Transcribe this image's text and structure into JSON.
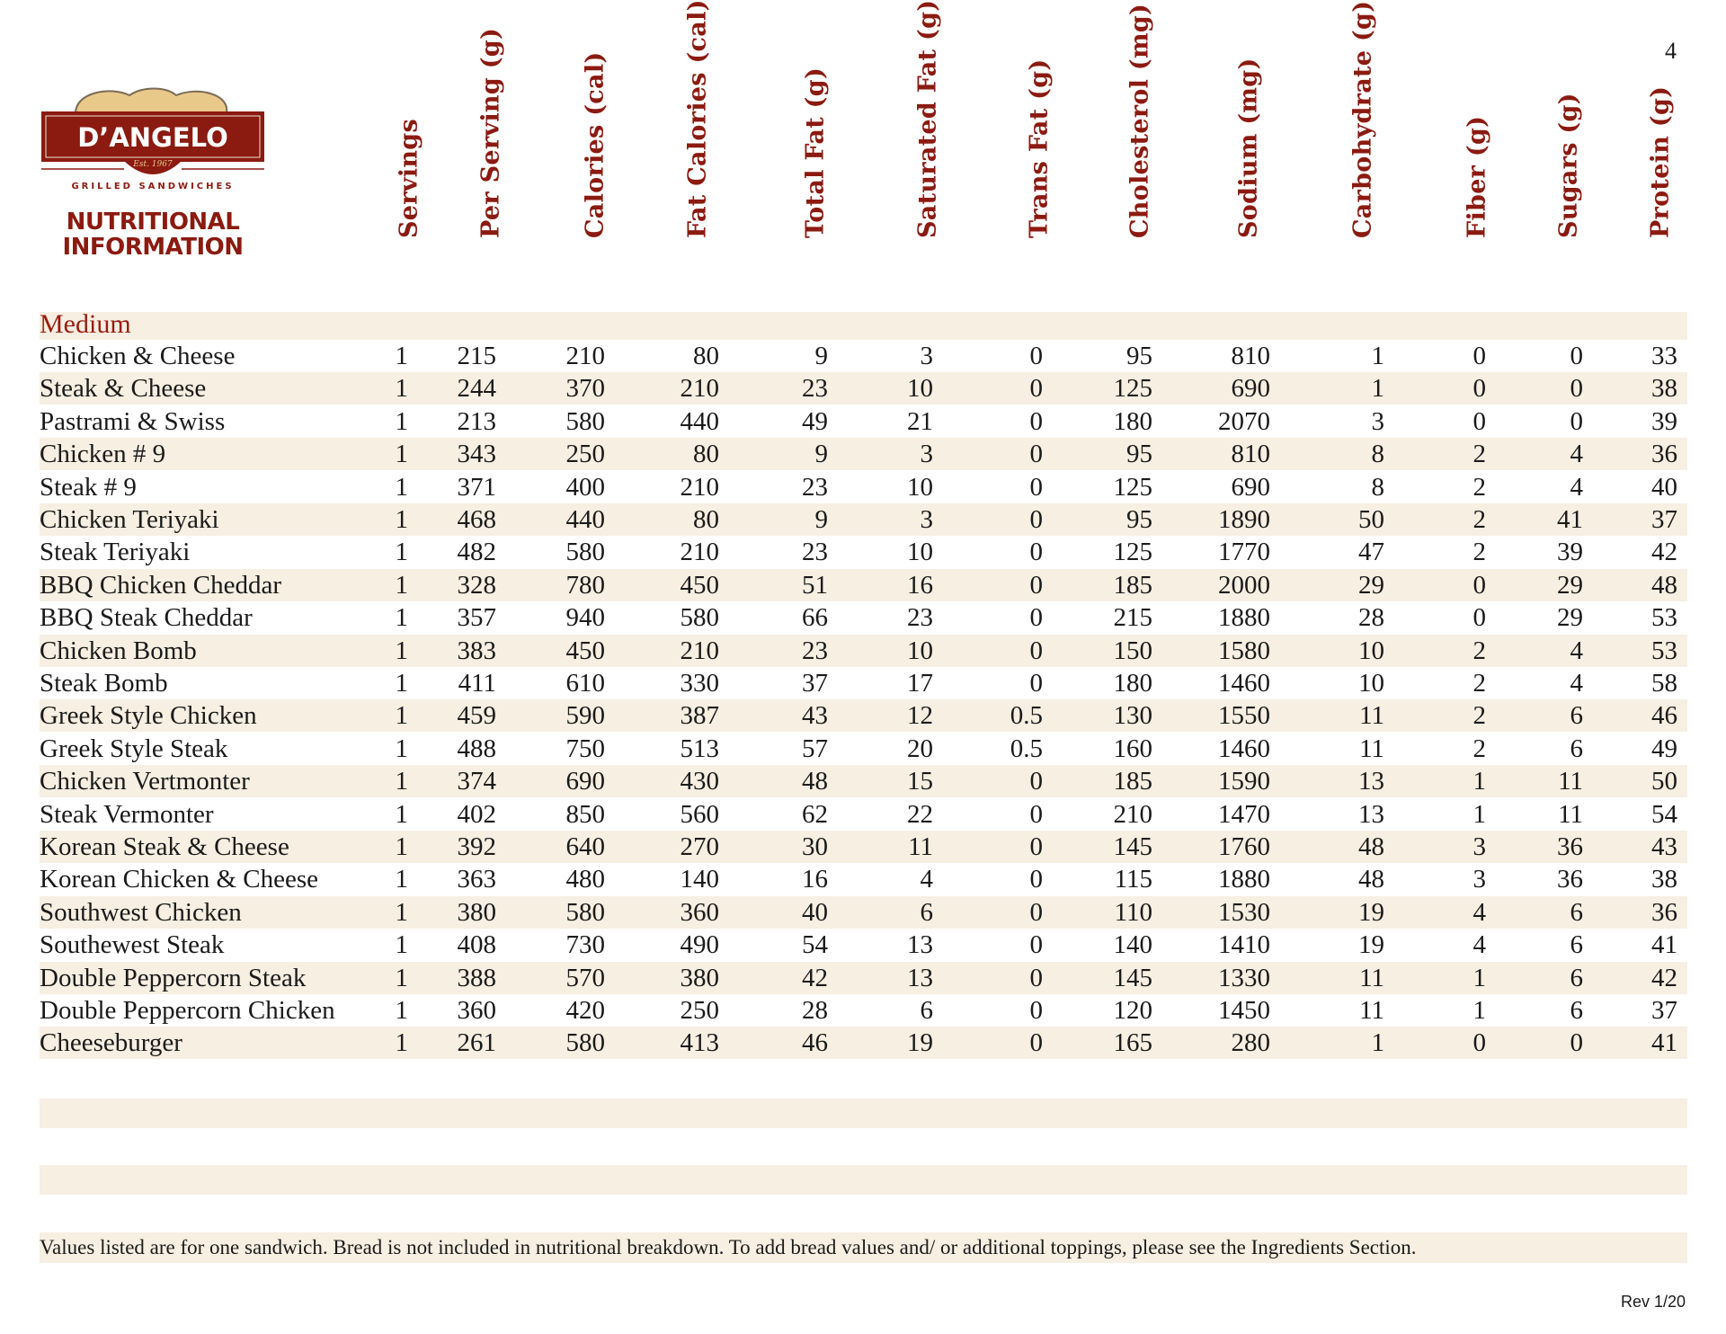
{
  "page_number": "4",
  "logo": {
    "brand": "D'ANGELO",
    "est": "Est. 1967",
    "tagline": "GRILLED SANDWICHES"
  },
  "title_line1": "NUTRITIONAL",
  "title_line2": "INFORMATION",
  "columns": [
    "Servings",
    "Per Serving (g)",
    "Calories (cal)",
    "Fat Calories (cal)",
    "Total Fat (g)",
    "Saturated Fat (g)",
    "Trans Fat  (g)",
    "Cholesterol (mg)",
    "Sodium (mg)",
    "Carbohydrate (g)",
    "Fiber (g)",
    "Sugars (g)",
    "Protein (g)"
  ],
  "section": "Medium",
  "rows": [
    {
      "name": "Chicken & Cheese",
      "values": [
        "1",
        "215",
        "210",
        "80",
        "9",
        "3",
        "0",
        "95",
        "810",
        "1",
        "0",
        "0",
        "33"
      ]
    },
    {
      "name": "Steak & Cheese",
      "values": [
        "1",
        "244",
        "370",
        "210",
        "23",
        "10",
        "0",
        "125",
        "690",
        "1",
        "0",
        "0",
        "38"
      ]
    },
    {
      "name": "Pastrami & Swiss",
      "values": [
        "1",
        "213",
        "580",
        "440",
        "49",
        "21",
        "0",
        "180",
        "2070",
        "3",
        "0",
        "0",
        "39"
      ]
    },
    {
      "name": "Chicken # 9",
      "values": [
        "1",
        "343",
        "250",
        "80",
        "9",
        "3",
        "0",
        "95",
        "810",
        "8",
        "2",
        "4",
        "36"
      ]
    },
    {
      "name": "Steak # 9",
      "values": [
        "1",
        "371",
        "400",
        "210",
        "23",
        "10",
        "0",
        "125",
        "690",
        "8",
        "2",
        "4",
        "40"
      ]
    },
    {
      "name": "Chicken Teriyaki",
      "values": [
        "1",
        "468",
        "440",
        "80",
        "9",
        "3",
        "0",
        "95",
        "1890",
        "50",
        "2",
        "41",
        "37"
      ]
    },
    {
      "name": "Steak Teriyaki",
      "values": [
        "1",
        "482",
        "580",
        "210",
        "23",
        "10",
        "0",
        "125",
        "1770",
        "47",
        "2",
        "39",
        "42"
      ]
    },
    {
      "name": "BBQ Chicken Cheddar",
      "values": [
        "1",
        "328",
        "780",
        "450",
        "51",
        "16",
        "0",
        "185",
        "2000",
        "29",
        "0",
        "29",
        "48"
      ]
    },
    {
      "name": "BBQ Steak Cheddar",
      "values": [
        "1",
        "357",
        "940",
        "580",
        "66",
        "23",
        "0",
        "215",
        "1880",
        "28",
        "0",
        "29",
        "53"
      ]
    },
    {
      "name": "Chicken Bomb",
      "values": [
        "1",
        "383",
        "450",
        "210",
        "23",
        "10",
        "0",
        "150",
        "1580",
        "10",
        "2",
        "4",
        "53"
      ]
    },
    {
      "name": "Steak Bomb",
      "values": [
        "1",
        "411",
        "610",
        "330",
        "37",
        "17",
        "0",
        "180",
        "1460",
        "10",
        "2",
        "4",
        "58"
      ]
    },
    {
      "name": "Greek Style Chicken",
      "values": [
        "1",
        "459",
        "590",
        "387",
        "43",
        "12",
        "0.5",
        "130",
        "1550",
        "11",
        "2",
        "6",
        "46"
      ]
    },
    {
      "name": "Greek Style Steak",
      "values": [
        "1",
        "488",
        "750",
        "513",
        "57",
        "20",
        "0.5",
        "160",
        "1460",
        "11",
        "2",
        "6",
        "49"
      ]
    },
    {
      "name": "Chicken Vertmonter",
      "values": [
        "1",
        "374",
        "690",
        "430",
        "48",
        "15",
        "0",
        "185",
        "1590",
        "13",
        "1",
        "11",
        "50"
      ]
    },
    {
      "name": "Steak Vermonter",
      "values": [
        "1",
        "402",
        "850",
        "560",
        "62",
        "22",
        "0",
        "210",
        "1470",
        "13",
        "1",
        "11",
        "54"
      ]
    },
    {
      "name": "Korean Steak & Cheese",
      "values": [
        "1",
        "392",
        "640",
        "270",
        "30",
        "11",
        "0",
        "145",
        "1760",
        "48",
        "3",
        "36",
        "43"
      ]
    },
    {
      "name": "Korean Chicken & Cheese",
      "values": [
        "1",
        "363",
        "480",
        "140",
        "16",
        "4",
        "0",
        "115",
        "1880",
        "48",
        "3",
        "36",
        "38"
      ]
    },
    {
      "name": "Southwest Chicken",
      "values": [
        "1",
        "380",
        "580",
        "360",
        "40",
        "6",
        "0",
        "110",
        "1530",
        "19",
        "4",
        "6",
        "36"
      ]
    },
    {
      "name": "Southewest Steak",
      "values": [
        "1",
        "408",
        "730",
        "490",
        "54",
        "13",
        "0",
        "140",
        "1410",
        "19",
        "4",
        "6",
        "41"
      ]
    },
    {
      "name": "Double Peppercorn Steak",
      "values": [
        "1",
        "388",
        "570",
        "380",
        "42",
        "13",
        "0",
        "145",
        "1330",
        "11",
        "1",
        "6",
        "42"
      ]
    },
    {
      "name": "Double Peppercorn Chicken",
      "values": [
        "1",
        "360",
        "420",
        "250",
        "28",
        "6",
        "0",
        "120",
        "1450",
        "11",
        "1",
        "6",
        "37"
      ]
    },
    {
      "name": "Cheeseburger",
      "values": [
        "1",
        "261",
        "580",
        "413",
        "46",
        "19",
        "0",
        "165",
        "280",
        "1",
        "0",
        "0",
        "41"
      ]
    }
  ],
  "footnote": "Values listed are for one sandwich. Bread is not included in nutritional breakdown. To add bread values and/ or additional toppings, please see the Ingredients Section.",
  "revision": "Rev 1/20",
  "colors": {
    "brand_red": "#8b1a10",
    "stripe": "#f6efe2",
    "bread": "#e9c98a"
  }
}
